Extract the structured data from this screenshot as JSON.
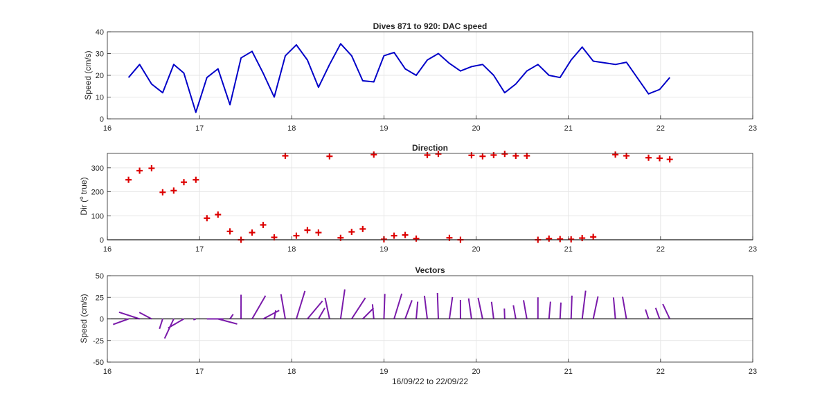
{
  "colors": {
    "speed_line": "#0000c8",
    "direction_marker": "#dd0000",
    "vector_line": "#7a1aaa",
    "zero_line": "#000000",
    "grid": "#e6e6e6",
    "axes": "#262626"
  },
  "chart_data": [
    {
      "type": "line",
      "title": "Dives 871 to 920: DAC speed",
      "xlabel": "",
      "ylabel": "Speed (cm/s)",
      "xlim": [
        16,
        23
      ],
      "ylim": [
        0,
        40
      ],
      "xticks": [
        16,
        17,
        18,
        19,
        20,
        21,
        22,
        23
      ],
      "yticks": [
        0,
        10,
        20,
        30,
        40
      ],
      "grid": true,
      "series": [
        {
          "x": [
            16.23,
            16.35,
            16.48,
            16.6,
            16.72,
            16.83,
            16.96,
            17.08,
            17.2,
            17.33,
            17.45,
            17.57,
            17.69,
            17.81,
            17.93,
            18.05,
            18.17,
            18.29,
            18.41,
            18.53,
            18.65,
            18.77,
            18.89,
            19.0,
            19.11,
            19.23,
            19.35,
            19.47,
            19.59,
            19.71,
            19.83,
            19.95,
            20.07,
            20.19,
            20.31,
            20.43,
            20.55,
            20.67,
            20.79,
            20.91,
            21.03,
            21.15,
            21.27,
            21.51,
            21.63,
            21.87,
            21.99,
            22.1
          ],
          "values": [
            19,
            25,
            16,
            12,
            25,
            21,
            3,
            19,
            23,
            6.5,
            28,
            31,
            21,
            10,
            29,
            34,
            27,
            14.5,
            25,
            34.5,
            29,
            17.5,
            17,
            29,
            30.5,
            23,
            20,
            27,
            30,
            25.5,
            22,
            24,
            25,
            20,
            12,
            16,
            22,
            25,
            20,
            19,
            27,
            33,
            26.5,
            25,
            26,
            11.5,
            13.5,
            19
          ]
        }
      ]
    },
    {
      "type": "scatter",
      "title": "Direction",
      "xlabel": "",
      "ylabel": "Dir (°true)",
      "ylabel_main": "Dir (",
      "ylabel_sup": "o",
      "ylabel_tail": " true)",
      "xlim": [
        16,
        23
      ],
      "ylim": [
        0,
        360
      ],
      "xticks": [
        16,
        17,
        18,
        19,
        20,
        21,
        22,
        23
      ],
      "yticks": [
        0,
        100,
        200,
        300
      ],
      "grid": true,
      "marker": "+",
      "series": [
        {
          "x": [
            16.23,
            16.35,
            16.48,
            16.6,
            16.72,
            16.83,
            16.96,
            17.08,
            17.2,
            17.33,
            17.45,
            17.57,
            17.69,
            17.81,
            17.93,
            18.05,
            18.17,
            18.29,
            18.41,
            18.53,
            18.65,
            18.77,
            18.89,
            19.0,
            19.11,
            19.23,
            19.35,
            19.47,
            19.59,
            19.71,
            19.83,
            19.95,
            20.07,
            20.19,
            20.31,
            20.43,
            20.55,
            20.67,
            20.79,
            20.91,
            21.03,
            21.15,
            21.27,
            21.51,
            21.63,
            21.87,
            21.99,
            22.1
          ],
          "values": [
            250,
            288,
            298,
            198,
            205,
            240,
            250,
            90,
            105,
            35,
            0,
            30,
            62,
            10,
            350,
            17,
            40,
            30,
            348,
            8,
            33,
            45,
            355,
            2,
            17,
            20,
            5,
            353,
            358,
            8,
            0,
            352,
            348,
            353,
            358,
            350,
            350,
            0,
            5,
            3,
            2,
            7,
            12,
            355,
            350,
            342,
            340,
            335
          ]
        }
      ]
    },
    {
      "type": "vector",
      "title": "Vectors",
      "xlabel": "16/09/22 to 22/09/22",
      "ylabel": "Speed (cm/s)",
      "xlim": [
        16,
        23
      ],
      "ylim": [
        -50,
        50
      ],
      "xticks": [
        16,
        17,
        18,
        19,
        20,
        21,
        22,
        23
      ],
      "yticks": [
        -50,
        -25,
        0,
        25,
        50
      ],
      "grid": true,
      "series": [
        {
          "x": [
            16.23,
            16.35,
            16.48,
            16.6,
            16.72,
            16.83,
            16.96,
            17.08,
            17.2,
            17.33,
            17.45,
            17.57,
            17.69,
            17.81,
            17.93,
            18.05,
            18.17,
            18.29,
            18.41,
            18.53,
            18.65,
            18.77,
            18.89,
            19.0,
            19.11,
            19.23,
            19.35,
            19.47,
            19.59,
            19.71,
            19.83,
            19.95,
            20.07,
            20.19,
            20.31,
            20.43,
            20.55,
            20.67,
            20.79,
            20.91,
            21.03,
            21.15,
            21.27,
            21.51,
            21.63,
            21.87,
            21.99,
            22.1
          ],
          "speed": [
            19,
            25,
            16,
            12,
            25,
            21,
            3,
            19,
            23,
            6.5,
            28,
            31,
            21,
            10,
            29,
            34,
            27,
            14.5,
            25,
            34.5,
            29,
            17.5,
            17,
            29,
            30.5,
            23,
            20,
            27,
            30,
            25.5,
            22,
            24,
            25,
            20,
            12,
            16,
            22,
            25,
            20,
            19,
            27,
            33,
            26.5,
            25,
            26,
            11.5,
            13.5,
            19
          ],
          "direction": [
            250,
            288,
            298,
            198,
            205,
            240,
            250,
            90,
            105,
            35,
            0,
            30,
            62,
            10,
            350,
            17,
            40,
            30,
            348,
            8,
            33,
            45,
            355,
            2,
            17,
            20,
            5,
            353,
            358,
            8,
            0,
            352,
            348,
            353,
            358,
            350,
            350,
            0,
            5,
            3,
            2,
            7,
            12,
            355,
            350,
            342,
            340,
            335
          ]
        }
      ]
    }
  ]
}
